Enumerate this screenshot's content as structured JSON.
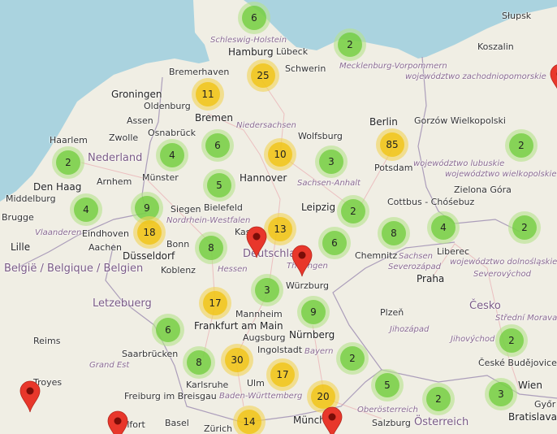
{
  "map": {
    "colors": {
      "land": "#f0eee4",
      "water": "#aad3df",
      "small_cluster": "#6ecc39",
      "medium_cluster": "#f0c20c",
      "pin": "#e8372b"
    },
    "labels": [
      {
        "text": "Groningen",
        "type": "big"
      },
      {
        "text": "Oldenburg",
        "type": "city"
      },
      {
        "text": "Bremen",
        "type": "big"
      },
      {
        "text": "Bremerhaven",
        "type": "city"
      },
      {
        "text": "Assen",
        "type": "city"
      },
      {
        "text": "Zwolle",
        "type": "city"
      },
      {
        "text": "Haarlem",
        "type": "city"
      },
      {
        "text": "Nederland",
        "type": "country"
      },
      {
        "text": "Den Haag",
        "type": "big"
      },
      {
        "text": "Arnhem",
        "type": "city"
      },
      {
        "text": "Münster",
        "type": "city"
      },
      {
        "text": "Osnabrück",
        "type": "city"
      },
      {
        "text": "Bielefeld",
        "type": "city"
      },
      {
        "text": "Hannover",
        "type": "big"
      },
      {
        "text": "Niedersachsen",
        "type": "region"
      },
      {
        "text": "Middelburg",
        "type": "city"
      },
      {
        "text": "Eindhoven",
        "type": "city"
      },
      {
        "text": "Nordrhein-Westfalen",
        "type": "region"
      },
      {
        "text": "Kassel",
        "type": "city"
      },
      {
        "text": "Schleswig-Holstein",
        "type": "region"
      },
      {
        "text": "Hamburg",
        "type": "big"
      },
      {
        "text": "Lübeck",
        "type": "city"
      },
      {
        "text": "Schwerin",
        "type": "city"
      },
      {
        "text": "Mecklenburg-Vorpommern",
        "type": "region"
      },
      {
        "text": "Słupsk",
        "type": "city"
      },
      {
        "text": "Koszalin",
        "type": "city"
      },
      {
        "text": "województwo zachodniopomorskie",
        "type": "region"
      },
      {
        "text": "Gorzów Wielkopolski",
        "type": "city"
      },
      {
        "text": "Wolfsburg",
        "type": "city"
      },
      {
        "text": "Berlin",
        "type": "big"
      },
      {
        "text": "Potsdam",
        "type": "city"
      },
      {
        "text": "Sachsen-Anhalt",
        "type": "region"
      },
      {
        "text": "województwo lubuskie",
        "type": "region"
      },
      {
        "text": "województwo wielkopolskie",
        "type": "region"
      },
      {
        "text": "Zielona Góra",
        "type": "city"
      },
      {
        "text": "Cottbus - Chóśebuz",
        "type": "city"
      },
      {
        "text": "Leipzig",
        "type": "big"
      },
      {
        "text": "Deutschland",
        "type": "country"
      },
      {
        "text": "Brugge",
        "type": "city"
      },
      {
        "text": "Vlaanderen",
        "type": "region"
      },
      {
        "text": "Düsseldorf",
        "type": "big"
      },
      {
        "text": "Aachen",
        "type": "city"
      },
      {
        "text": "Bonn",
        "type": "city"
      },
      {
        "text": "Siegen",
        "type": "city"
      },
      {
        "text": "Lille",
        "type": "big"
      },
      {
        "text": "België / Belgique / Belgien",
        "type": "country"
      },
      {
        "text": "Koblenz",
        "type": "city"
      },
      {
        "text": "Hessen",
        "type": "region"
      },
      {
        "text": "Frankfurt am Main",
        "type": "big"
      },
      {
        "text": "Letzebuerg",
        "type": "country"
      },
      {
        "text": "Mannheim",
        "type": "city"
      },
      {
        "text": "Reims",
        "type": "city"
      },
      {
        "text": "Saarbrücken",
        "type": "city"
      },
      {
        "text": "Grand Est",
        "type": "region"
      },
      {
        "text": "Karlsruhe",
        "type": "city"
      },
      {
        "text": "Baden-Württemberg",
        "type": "region"
      },
      {
        "text": "Troyes",
        "type": "city"
      },
      {
        "text": "Freiburg im Breisgau",
        "type": "city"
      },
      {
        "text": "Ulm",
        "type": "city"
      },
      {
        "text": "Belfort",
        "type": "city"
      },
      {
        "text": "Basel",
        "type": "city"
      },
      {
        "text": "Zürich",
        "type": "city"
      },
      {
        "text": "Thüringen",
        "type": "region"
      },
      {
        "text": "Chemnitz",
        "type": "city"
      },
      {
        "text": "Sachsen",
        "type": "region"
      },
      {
        "text": "Liberec",
        "type": "city"
      },
      {
        "text": "województwo dolnośląskie",
        "type": "region"
      },
      {
        "text": "Severozápad",
        "type": "region"
      },
      {
        "text": "Severovýchod",
        "type": "region"
      },
      {
        "text": "Praha",
        "type": "big"
      },
      {
        "text": "Česko",
        "type": "country"
      },
      {
        "text": "Würzburg",
        "type": "city"
      },
      {
        "text": "Plzeň",
        "type": "city"
      },
      {
        "text": "Nürnberg",
        "type": "big"
      },
      {
        "text": "Jihozápad",
        "type": "region"
      },
      {
        "text": "Jihovýchod",
        "type": "region"
      },
      {
        "text": "Střední Morava",
        "type": "region"
      },
      {
        "text": "Bayern",
        "type": "region"
      },
      {
        "text": "Ingolstadt",
        "type": "city"
      },
      {
        "text": "České Budějovice",
        "type": "city"
      },
      {
        "text": "Augsburg",
        "type": "city"
      },
      {
        "text": "München",
        "type": "big"
      },
      {
        "text": "Oberösterreich",
        "type": "region"
      },
      {
        "text": "Wien",
        "type": "big"
      },
      {
        "text": "Bratislava",
        "type": "big"
      },
      {
        "text": "Salzburg",
        "type": "city"
      },
      {
        "text": "Österreich",
        "type": "country"
      },
      {
        "text": "Győr",
        "type": "city"
      }
    ],
    "clusters": [
      {
        "count": "6",
        "size": "small"
      },
      {
        "count": "2",
        "size": "small"
      },
      {
        "count": "25",
        "size": "medium"
      },
      {
        "count": "11",
        "size": "medium"
      },
      {
        "count": "2",
        "size": "small"
      },
      {
        "count": "4",
        "size": "small"
      },
      {
        "count": "6",
        "size": "small"
      },
      {
        "count": "10",
        "size": "medium"
      },
      {
        "count": "3",
        "size": "small"
      },
      {
        "count": "85",
        "size": "medium"
      },
      {
        "count": "2",
        "size": "small"
      },
      {
        "count": "5",
        "size": "small"
      },
      {
        "count": "4",
        "size": "small"
      },
      {
        "count": "9",
        "size": "small"
      },
      {
        "count": "18",
        "size": "medium"
      },
      {
        "count": "2",
        "size": "small"
      },
      {
        "count": "13",
        "size": "medium"
      },
      {
        "count": "4",
        "size": "small"
      },
      {
        "count": "2",
        "size": "small"
      },
      {
        "count": "8",
        "size": "small"
      },
      {
        "count": "6",
        "size": "small"
      },
      {
        "count": "8",
        "size": "small"
      },
      {
        "count": "3",
        "size": "small"
      },
      {
        "count": "17",
        "size": "medium"
      },
      {
        "count": "9",
        "size": "small"
      },
      {
        "count": "6",
        "size": "small"
      },
      {
        "count": "2",
        "size": "small"
      },
      {
        "count": "2",
        "size": "small"
      },
      {
        "count": "8",
        "size": "small"
      },
      {
        "count": "30",
        "size": "medium"
      },
      {
        "count": "17",
        "size": "medium"
      },
      {
        "count": "5",
        "size": "small"
      },
      {
        "count": "20",
        "size": "medium"
      },
      {
        "count": "2",
        "size": "small"
      },
      {
        "count": "3",
        "size": "small"
      },
      {
        "count": "14",
        "size": "medium"
      }
    ],
    "pin_icon": "map-marker-icon",
    "pin_count": 6
  }
}
